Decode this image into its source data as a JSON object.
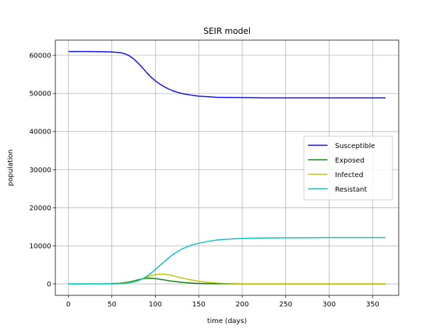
{
  "chart_data": {
    "type": "line",
    "title": "SEIR model",
    "xlabel": "time (days)",
    "ylabel": "population",
    "xlim": [
      -15,
      380
    ],
    "ylim": [
      -3000,
      64000
    ],
    "xticks": [
      0,
      50,
      100,
      150,
      200,
      250,
      300,
      350
    ],
    "yticks": [
      0,
      10000,
      20000,
      30000,
      40000,
      50000,
      60000
    ],
    "grid": true,
    "legend_position": "center-right",
    "x": [
      0,
      20,
      40,
      50,
      60,
      65,
      70,
      75,
      80,
      85,
      90,
      95,
      100,
      105,
      110,
      115,
      120,
      130,
      140,
      150,
      160,
      170,
      180,
      200,
      225,
      250,
      300,
      365
    ],
    "series": [
      {
        "name": "Susceptible",
        "color": "#0000ff",
        "values": [
          61000,
          61000,
          60950,
          60900,
          60700,
          60400,
          59900,
          59100,
          58000,
          56800,
          55500,
          54300,
          53300,
          52500,
          51800,
          51200,
          50700,
          50000,
          49600,
          49300,
          49150,
          49000,
          48950,
          48900,
          48850,
          48850,
          48850,
          48850
        ]
      },
      {
        "name": "Exposed",
        "color": "#008000",
        "values": [
          0,
          10,
          40,
          80,
          200,
          330,
          520,
          780,
          1080,
          1330,
          1480,
          1500,
          1400,
          1250,
          1050,
          860,
          690,
          430,
          250,
          140,
          70,
          35,
          15,
          5,
          0,
          0,
          0,
          0
        ]
      },
      {
        "name": "Infected",
        "color": "#bfbf00",
        "values": [
          0,
          5,
          20,
          50,
          120,
          220,
          380,
          600,
          900,
          1300,
          1750,
          2150,
          2450,
          2550,
          2550,
          2400,
          2150,
          1600,
          1100,
          700,
          420,
          240,
          130,
          40,
          10,
          0,
          0,
          0
        ]
      },
      {
        "name": "Resistant",
        "color": "#00bfbf",
        "values": [
          0,
          5,
          20,
          50,
          100,
          180,
          300,
          500,
          800,
          1300,
          2000,
          2800,
          3800,
          4800,
          5800,
          6800,
          7700,
          9100,
          10100,
          10700,
          11150,
          11500,
          11700,
          11950,
          12050,
          12100,
          12150,
          12150
        ]
      }
    ]
  }
}
